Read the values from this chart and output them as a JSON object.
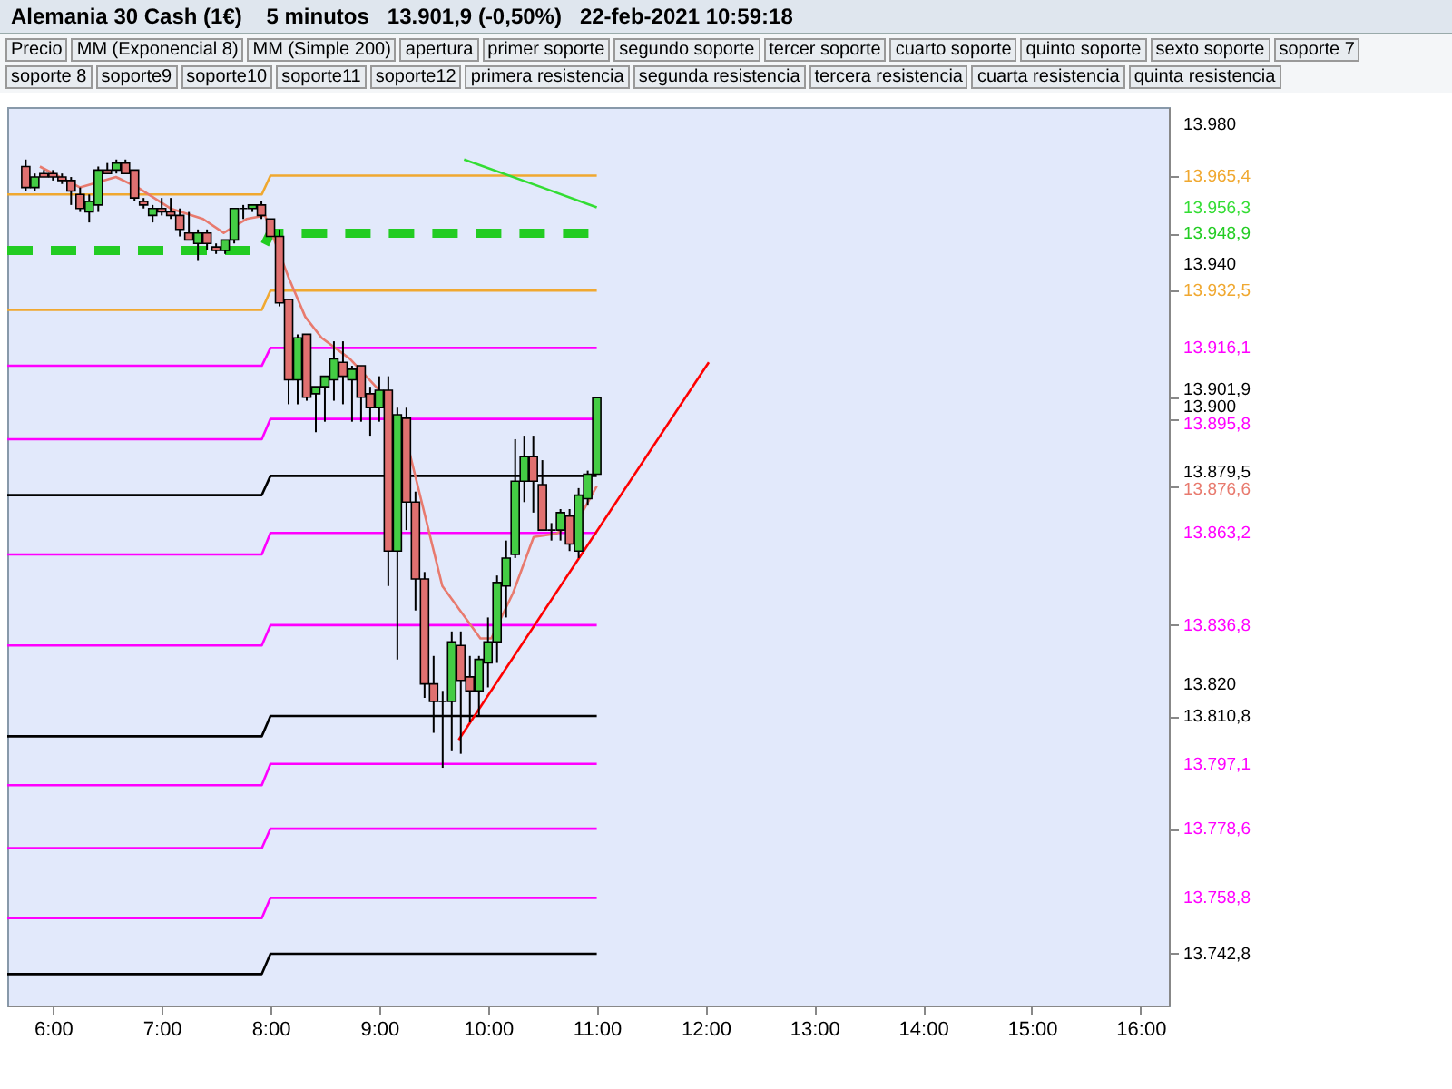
{
  "chart_data": {
    "type": "candlestick",
    "title": "Alemania 30 Cash (1€)",
    "subtitle": "5 minutos   13.901,9 (-0,50%)   22-feb-2021 10:59:18",
    "annotations": [
      "Precio",
      "MM (Exponencial 8)",
      "MM (Simple 200)",
      "apertura",
      "primer soporte",
      "segundo soporte",
      "tercer soporte",
      "cuarto soporte",
      "quinto soporte",
      "sexto soporte",
      "soporte 7",
      "soporte 8",
      "soporte9",
      "soporte10",
      "soporte11",
      "soporte12",
      "primera resistencia",
      "segunda resistencia",
      "tercera resistencia",
      "cuarta resistencia",
      "quinta resistencia"
    ],
    "x": [
      5.75,
      5.8333,
      5.9167,
      6,
      6.0833,
      6.1667,
      6.25,
      6.3333,
      6.4167,
      6.5,
      6.5833,
      6.6667,
      6.75,
      6.8333,
      6.9167,
      7,
      7.0833,
      7.1667,
      7.25,
      7.3333,
      7.4167,
      7.5,
      7.5833,
      7.6667,
      7.75,
      7.8333,
      7.9167,
      8,
      8.0833,
      8.1667,
      8.25,
      8.3333,
      8.4167,
      8.5,
      8.5833,
      8.6667,
      8.75,
      8.8333,
      8.9167,
      9,
      9.0833,
      9.1667,
      9.25,
      9.3333,
      9.4167,
      9.5,
      9.5833,
      9.6667,
      9.75,
      9.8333,
      9.9167,
      10,
      10.0833,
      10.1667,
      10.25,
      10.3333,
      10.4167,
      10.5,
      10.5833,
      10.6667,
      10.75,
      10.8333,
      10.9167,
      11
    ],
    "ohlc": [
      [
        13968,
        13970,
        13961,
        13962
      ],
      [
        13962,
        13966,
        13961,
        13965
      ],
      [
        13966,
        13967,
        13965,
        13965
      ],
      [
        13966,
        13967,
        13964,
        13965
      ],
      [
        13965,
        13966,
        13963,
        13964
      ],
      [
        13964,
        13965,
        13957,
        13961
      ],
      [
        13960,
        13962,
        13955,
        13956
      ],
      [
        13955,
        13960,
        13952,
        13958
      ],
      [
        13957,
        13968,
        13955,
        13967
      ],
      [
        13967,
        13969,
        13966,
        13966
      ],
      [
        13967,
        13970,
        13966,
        13969
      ],
      [
        13969,
        13970,
        13966,
        13966
      ],
      [
        13967,
        13967,
        13958,
        13959
      ],
      [
        13958,
        13959,
        13956,
        13957
      ],
      [
        13954,
        13957,
        13952,
        13956
      ],
      [
        13956,
        13959,
        13954,
        13955
      ],
      [
        13955,
        13959,
        13953,
        13954
      ],
      [
        13954,
        13956,
        13948,
        13950
      ],
      [
        13949,
        13955,
        13947,
        13947
      ],
      [
        13946,
        13950,
        13941,
        13949
      ],
      [
        13949,
        13950,
        13944,
        13946
      ],
      [
        13945,
        13946,
        13943,
        13944
      ],
      [
        13944,
        13947,
        13943,
        13947
      ],
      [
        13947,
        13956,
        13946,
        13956
      ],
      [
        13956,
        13957,
        13953,
        13956
      ],
      [
        13956,
        13957,
        13955,
        13957
      ],
      [
        13957,
        13958,
        13953,
        13954
      ],
      [
        13953,
        13953,
        13948,
        13948
      ],
      [
        13948,
        13950,
        13928,
        13929
      ],
      [
        13930,
        13930,
        13900,
        13907
      ],
      [
        13907,
        13920,
        13900,
        13919
      ],
      [
        13920,
        13920,
        13901,
        13902
      ],
      [
        13903,
        13905,
        13892,
        13905
      ],
      [
        13905,
        13908,
        13895,
        13908
      ],
      [
        13907,
        13918,
        13901,
        13913
      ],
      [
        13912,
        13918,
        13900,
        13908
      ],
      [
        13907,
        13911,
        13895,
        13910
      ],
      [
        13911,
        13911,
        13895,
        13902
      ],
      [
        13903,
        13905,
        13891,
        13899
      ],
      [
        13899,
        13908,
        13895,
        13904
      ],
      [
        13904,
        13908,
        13848,
        13858
      ],
      [
        13858,
        13899,
        13827,
        13897
      ],
      [
        13896,
        13899,
        13864,
        13872
      ],
      [
        13872,
        13875,
        13841,
        13850
      ],
      [
        13850,
        13852,
        13816,
        13820
      ],
      [
        13820,
        13828,
        13806,
        13815
      ],
      [
        13815,
        13818,
        13796,
        13815
      ],
      [
        13815,
        13835,
        13801,
        13832
      ],
      [
        13831,
        13835,
        13800,
        13821
      ],
      [
        13822,
        13828,
        13809,
        13818
      ],
      [
        13818,
        13828,
        13811,
        13827
      ],
      [
        13826,
        13839,
        13819,
        13832
      ],
      [
        13832,
        13851,
        13826,
        13849
      ],
      [
        13848,
        13861,
        13839,
        13856
      ],
      [
        13857,
        13890,
        13856,
        13878
      ],
      [
        13878,
        13891,
        13872,
        13885
      ],
      [
        13885,
        13891,
        13869,
        13878
      ],
      [
        13877,
        13884,
        13864,
        13864
      ],
      [
        13864,
        13866,
        13861,
        13864
      ],
      [
        13864,
        13870,
        13861,
        13869
      ],
      [
        13868,
        13870,
        13858,
        13860
      ],
      [
        13858,
        13876,
        13856,
        13874
      ],
      [
        13873,
        13881,
        13871,
        13880
      ],
      [
        13880,
        13901.9,
        13880,
        13901.9
      ]
    ],
    "series": [
      {
        "type": "line",
        "color": "#f0a830",
        "x": [
          5.58,
          7.92,
          8.0,
          11.0
        ],
        "values": [
          13960,
          13960,
          13965.4,
          13965.4
        ]
      },
      {
        "type": "line",
        "color": "#f0a830",
        "x": [
          5.58,
          7.92,
          8.0,
          11.0
        ],
        "values": [
          13927,
          13927,
          13932.5,
          13932.5
        ]
      },
      {
        "type": "line",
        "color": "#ff00ff",
        "x": [
          5.58,
          7.92,
          8.0,
          11.0
        ],
        "values": [
          13911,
          13911,
          13916.1,
          13916.1
        ]
      },
      {
        "type": "line",
        "color": "#ff00ff",
        "x": [
          5.58,
          7.92,
          8.0,
          11.0
        ],
        "values": [
          13890,
          13890,
          13895.8,
          13895.8
        ]
      },
      {
        "type": "line",
        "color": "#000000",
        "x": [
          5.58,
          7.92,
          8.0,
          11.0
        ],
        "values": [
          13874,
          13874,
          13879.5,
          13879.5
        ]
      },
      {
        "type": "line",
        "color": "#ff00ff",
        "x": [
          5.58,
          7.92,
          8.0,
          11.0
        ],
        "values": [
          13857,
          13857,
          13863.2,
          13863.2
        ]
      },
      {
        "type": "line",
        "color": "#ff00ff",
        "x": [
          5.58,
          7.92,
          8.0,
          11.0
        ],
        "values": [
          13831,
          13831,
          13836.8,
          13836.8
        ]
      },
      {
        "type": "line",
        "color": "#000000",
        "x": [
          5.58,
          7.92,
          8.0,
          11.0
        ],
        "values": [
          13805,
          13805,
          13810.8,
          13810.8
        ]
      },
      {
        "type": "line",
        "color": "#ff00ff",
        "x": [
          5.58,
          7.92,
          8.0,
          11.0
        ],
        "values": [
          13791,
          13791,
          13797.1,
          13797.1
        ]
      },
      {
        "type": "line",
        "color": "#ff00ff",
        "x": [
          5.58,
          7.92,
          8.0,
          11.0
        ],
        "values": [
          13773,
          13773,
          13778.6,
          13778.6
        ]
      },
      {
        "type": "line",
        "color": "#ff00ff",
        "x": [
          5.58,
          7.92,
          8.0,
          11.0
        ],
        "values": [
          13753,
          13753,
          13758.8,
          13758.8
        ]
      },
      {
        "type": "line",
        "color": "#000000",
        "x": [
          5.58,
          7.92,
          8.0,
          11.0
        ],
        "values": [
          13737,
          13737,
          13742.8,
          13742.8
        ]
      },
      {
        "type": "line",
        "color": "#22cc22",
        "line_style": "dashed",
        "x": [
          5.58,
          7.92,
          8.0,
          11.0
        ],
        "values": [
          13944,
          13944,
          13948.9,
          13948.9
        ]
      },
      {
        "type": "line",
        "color": "#33dd33",
        "x": [
          9.78,
          10.5,
          11.0
        ],
        "values": [
          13970,
          13962,
          13956.3
        ]
      },
      {
        "type": "line",
        "color": "#e87a6e",
        "x": [
          5.88,
          6.25,
          6.58,
          6.78,
          7.08,
          7.38,
          7.57,
          7.78,
          7.95,
          8.17,
          8.32,
          8.47,
          8.73,
          9.03,
          9.28,
          9.58,
          9.93,
          10.03,
          10.23,
          10.42,
          10.63,
          10.83,
          11.0
        ],
        "values": [
          13968,
          13962,
          13965,
          13962,
          13956,
          13953,
          13949,
          13953,
          13954,
          13936,
          13925,
          13919,
          13913,
          13903,
          13886,
          13848,
          13833,
          13833,
          13846,
          13862,
          13863,
          13867,
          13876.6
        ]
      },
      {
        "type": "line",
        "color": "#ff0000",
        "x": [
          9.73,
          12.03
        ],
        "values": [
          13804,
          13912
        ]
      }
    ],
    "xlim": [
      5.58,
      16.26
    ],
    "xticks": [
      {
        "value": 6,
        "label": "6:00"
      },
      {
        "value": 7,
        "label": "7:00"
      },
      {
        "value": 8,
        "label": "8:00"
      },
      {
        "value": 9,
        "label": "9:00"
      },
      {
        "value": 10,
        "label": "10:00"
      },
      {
        "value": 11,
        "label": "11:00"
      },
      {
        "value": 12,
        "label": "12:00"
      },
      {
        "value": 13,
        "label": "13:00"
      },
      {
        "value": 14,
        "label": "14:00"
      },
      {
        "value": 15,
        "label": "15:00"
      },
      {
        "value": 16,
        "label": "16:00"
      }
    ],
    "ylim": [
      13728,
      13985
    ],
    "yticks": [
      {
        "value": 13742.8,
        "label": "13.742,8"
      },
      {
        "value": 13758.8,
        "label": "13.758,8"
      },
      {
        "value": 13778.6,
        "label": "13.778,6"
      },
      {
        "value": 13797.1,
        "label": "13.797,1"
      },
      {
        "value": 13810.8,
        "label": "13.810,8"
      },
      {
        "value": 13820,
        "label": "13.820"
      },
      {
        "value": 13836.8,
        "label": "13.836,8"
      },
      {
        "value": 13863.2,
        "label": "13.863,2"
      },
      {
        "value": 13876.6,
        "label": "13.876,6"
      },
      {
        "value": 13879.5,
        "label": "13.879,5"
      },
      {
        "value": 13895.8,
        "label": "13.895,8"
      },
      {
        "value": 13900,
        "label": "13.900"
      },
      {
        "value": 13901.9,
        "label": "13.901,9"
      },
      {
        "value": 13916.1,
        "label": "13.916,1"
      },
      {
        "value": 13932.5,
        "label": "13.932,5"
      },
      {
        "value": 13940,
        "label": "13.940"
      },
      {
        "value": 13948.9,
        "label": "13.948,9"
      },
      {
        "value": 13956.3,
        "label": "13.956,3"
      },
      {
        "value": 13965.4,
        "label": "13.965,4"
      },
      {
        "value": 13980,
        "label": "13.980"
      }
    ]
  }
}
